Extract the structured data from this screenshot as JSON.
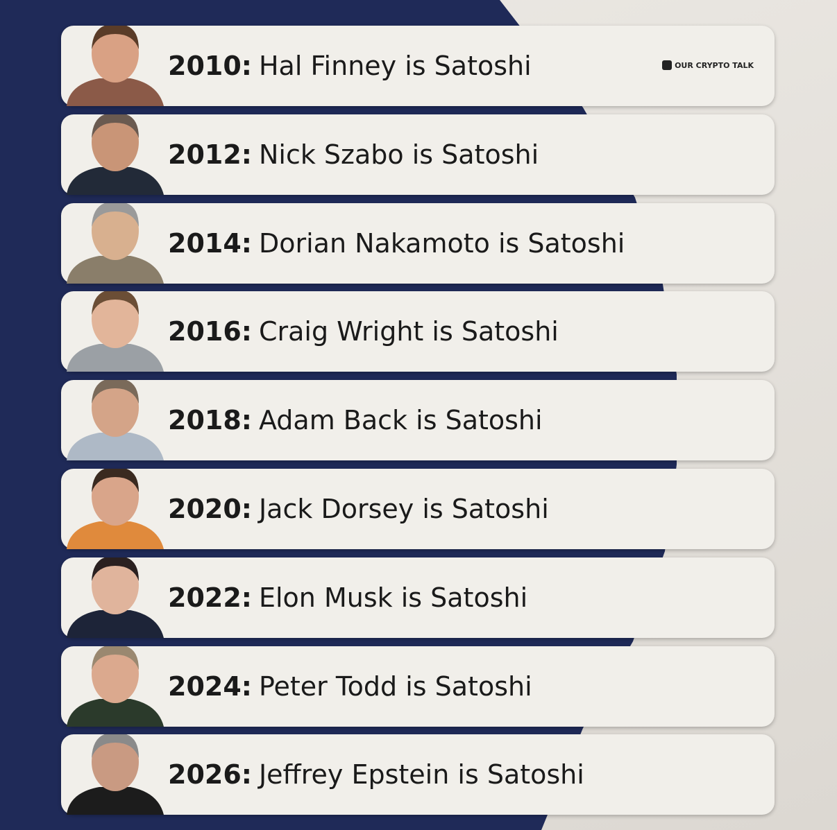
{
  "logo": "OUR CRYPTO TALK",
  "items": [
    {
      "year": "2010:",
      "text": "Hal Finney is Satoshi"
    },
    {
      "year": "2012:",
      "text": "Nick Szabo is Satoshi"
    },
    {
      "year": "2014:",
      "text": "Dorian Nakamoto is Satoshi"
    },
    {
      "year": "2016:",
      "text": "Craig Wright is Satoshi"
    },
    {
      "year": "2018:",
      "text": "Adam Back is Satoshi"
    },
    {
      "year": "2020:",
      "text": "Jack Dorsey is Satoshi"
    },
    {
      "year": "2022:",
      "text": "Elon Musk is Satoshi"
    },
    {
      "year": "2024:",
      "text": "Peter Todd is Satoshi"
    },
    {
      "year": "2026:",
      "text": "Jeffrey Epstein is Satoshi"
    }
  ]
}
